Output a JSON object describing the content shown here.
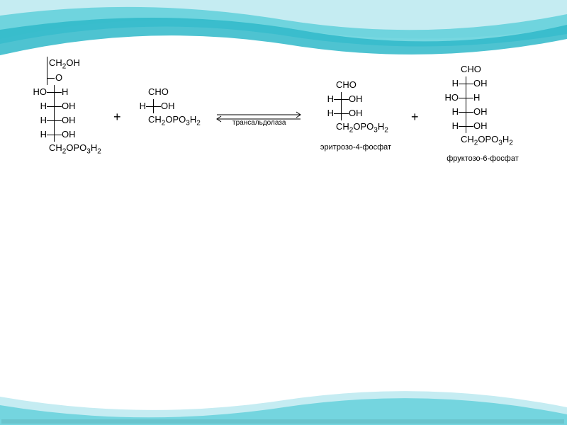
{
  "background": {
    "wave_colors": [
      "#c5ecf2",
      "#5fd0da",
      "#2fb8c9",
      "#88dee6"
    ],
    "page_bg": "#ffffff"
  },
  "typography": {
    "formula_fontsize": 13,
    "label_fontsize": 11,
    "enzyme_fontsize": 10,
    "plus_fontsize": 18
  },
  "reaction": {
    "operators": {
      "plus": "+",
      "enzyme_label": "трансальдолаза"
    },
    "molecules": [
      {
        "id": "sedoheptulose",
        "rows": [
          "CH2OH",
          "=O",
          "HO-H",
          "H-OH",
          "H-OH",
          "H-OH",
          "CH2OPO3H2"
        ],
        "label": ""
      },
      {
        "id": "g3p",
        "rows": [
          "CHO",
          "H-OH",
          "CH2OPO3H2"
        ],
        "label": ""
      },
      {
        "id": "erythrose4p",
        "rows": [
          "CHO",
          "H-OH",
          "H-OH",
          "CH2OPO3H2"
        ],
        "label": "эритрозо-4-фосфат"
      },
      {
        "id": "fructose6p",
        "rows": [
          "CHO",
          "H-OH",
          "HO-H",
          "H-OH",
          "H-OH",
          "CH2OPO3H2"
        ],
        "label": "фруктозо-6-фосфат"
      }
    ]
  }
}
